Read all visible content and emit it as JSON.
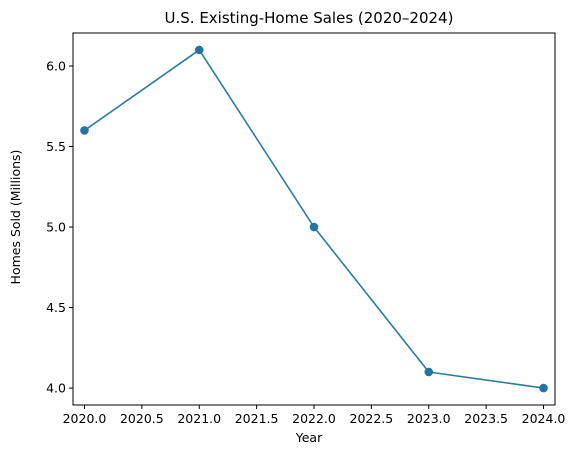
{
  "chart_data": {
    "type": "line",
    "title": "U.S. Existing-Home Sales (2020–2024)",
    "xlabel": "Year",
    "ylabel": "Homes Sold (Millions)",
    "x": [
      2020,
      2021,
      2022,
      2023,
      2024
    ],
    "series": [
      {
        "values": [
          5.6,
          6.1,
          5.0,
          4.1,
          4.0
        ]
      }
    ],
    "xlim": [
      2019.9,
      2024.1
    ],
    "ylim": [
      3.895,
      6.205
    ],
    "xticks": [
      {
        "value": 2020.0,
        "label": "2020.0"
      },
      {
        "value": 2020.5,
        "label": "2020.5"
      },
      {
        "value": 2021.0,
        "label": "2021.0"
      },
      {
        "value": 2021.5,
        "label": "2021.5"
      },
      {
        "value": 2022.0,
        "label": "2022.0"
      },
      {
        "value": 2022.5,
        "label": "2022.5"
      },
      {
        "value": 2023.0,
        "label": "2023.0"
      },
      {
        "value": 2023.5,
        "label": "2023.5"
      },
      {
        "value": 2024.0,
        "label": "2024.0"
      }
    ],
    "yticks": [
      {
        "value": 4.0,
        "label": "4.0"
      },
      {
        "value": 4.5,
        "label": "4.5"
      },
      {
        "value": 5.0,
        "label": "5.0"
      },
      {
        "value": 5.5,
        "label": "5.5"
      },
      {
        "value": 6.0,
        "label": "6.0"
      }
    ],
    "grid": false,
    "markers": true,
    "line_color": "#2c7b9c",
    "marker_color": "#2475a3"
  }
}
